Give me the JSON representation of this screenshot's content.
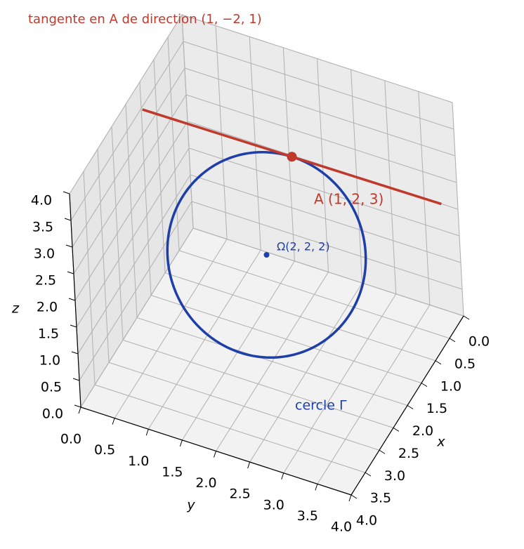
{
  "chart_data": {
    "type": "line3d",
    "title": "tangente en A de direction (1, −2, 1)",
    "xlabel": "x",
    "ylabel": "y",
    "zlabel": "z",
    "xlim": [
      0,
      4
    ],
    "ylim": [
      0,
      4
    ],
    "zlim": [
      0,
      4
    ],
    "xticks": [
      {
        "value": 0,
        "label": "0.0"
      },
      0.5,
      {
        "value": 1,
        "label": "1.0"
      },
      1.5,
      {
        "value": 2,
        "label": "2.0"
      },
      2.5,
      {
        "value": 3,
        "label": "3.0"
      },
      3.5,
      {
        "value": 4,
        "label": "4.0"
      }
    ],
    "yticks": [
      {
        "value": 0,
        "label": "0.0"
      },
      0.5,
      {
        "value": 1,
        "label": "1.0"
      },
      1.5,
      {
        "value": 2,
        "label": "2.0"
      },
      2.5,
      {
        "value": 3,
        "label": "3.0"
      },
      3.5,
      {
        "value": 4,
        "label": "4.0"
      }
    ],
    "zticks": [
      {
        "value": 0,
        "label": "0.0"
      },
      0.5,
      {
        "value": 1,
        "label": "1.0"
      },
      1.5,
      {
        "value": 2,
        "label": "2.0"
      },
      2.5,
      {
        "value": 3,
        "label": "3.0"
      },
      3.5,
      {
        "value": 4,
        "label": "4.0"
      }
    ],
    "grid": true,
    "circle": {
      "name": "cercle Γ",
      "color": "#1f3fa8",
      "center": [
        2,
        2,
        2
      ],
      "center_label": "Ω(2, 2, 2)"
    },
    "point": {
      "name": "A (1, 2, 3)",
      "color": "#c0392b",
      "coords": [
        1,
        2,
        3
      ],
      "direction": [
        1,
        -2,
        1
      ]
    },
    "tangent_line": {
      "color": "#c0392b",
      "x": [
        0.1,
        1.9
      ],
      "y": [
        3.8,
        0.2
      ],
      "z": [
        2.1,
        3.9
      ]
    }
  }
}
